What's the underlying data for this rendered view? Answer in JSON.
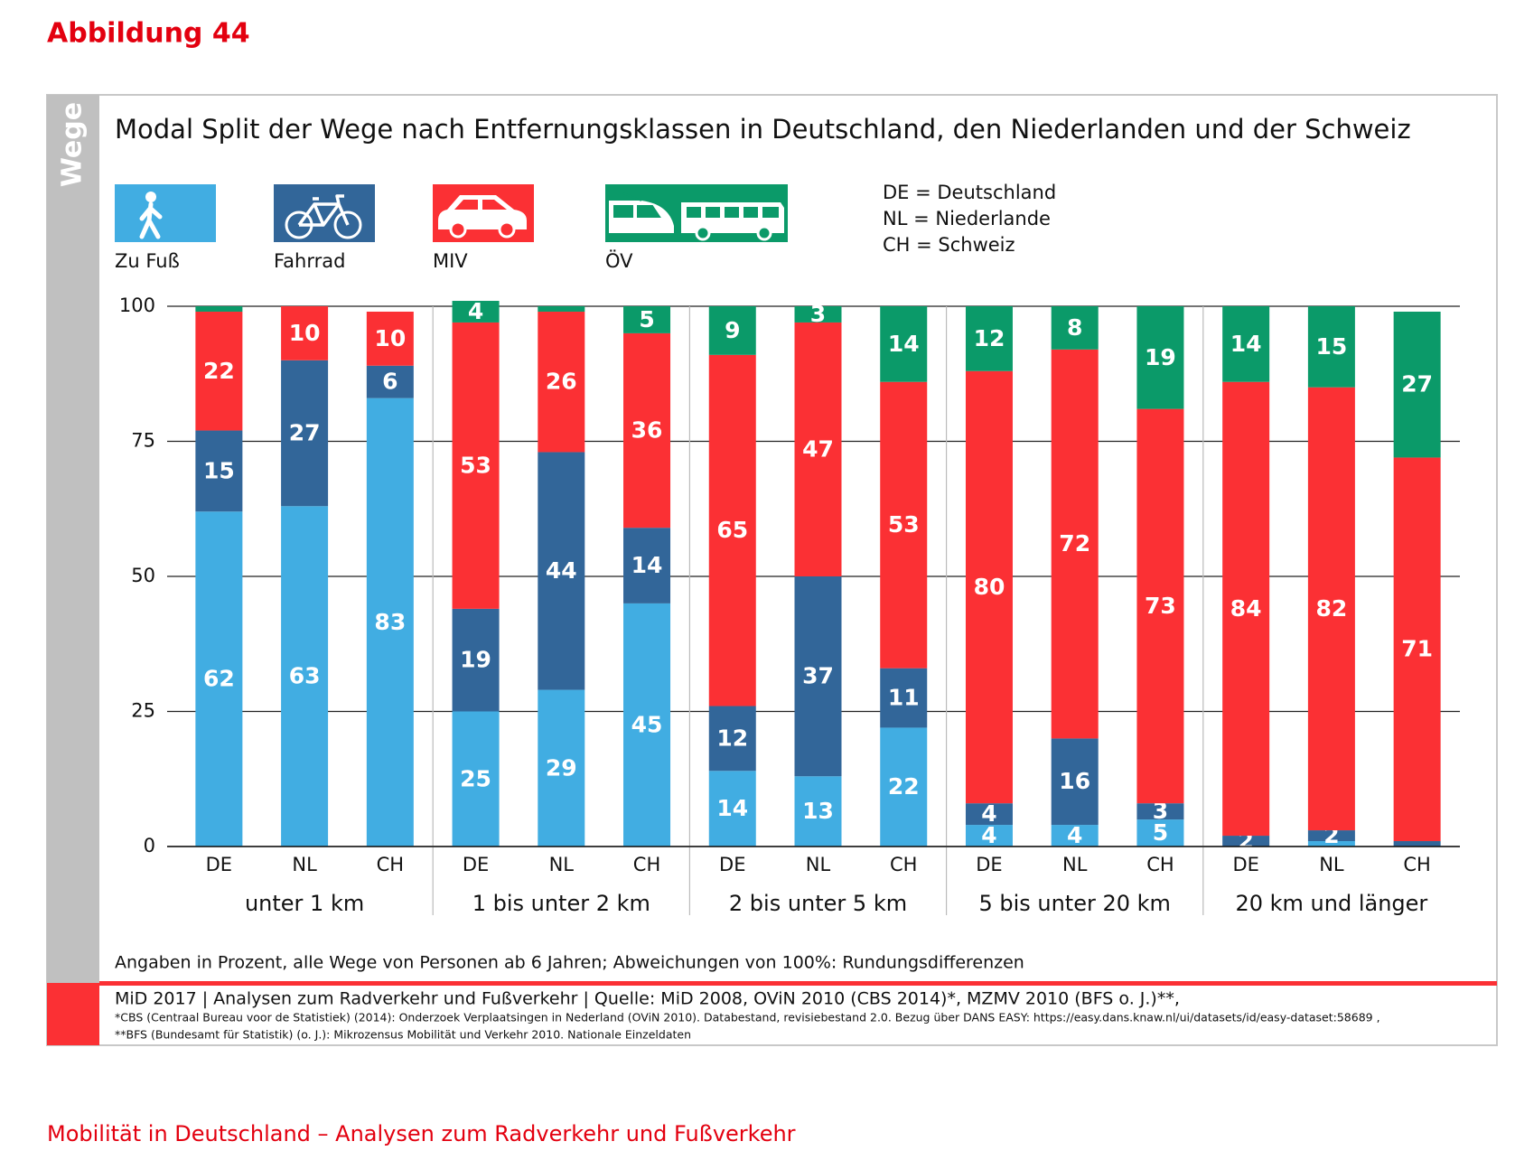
{
  "page": {
    "figure": "Abbildung 44",
    "footer": "Mobilität in Deutschland – Analysen zum Radverkehr und Fußverkehr"
  },
  "chart_data": {
    "type": "stacked_bar",
    "side_label": "Wege",
    "title": "Modal Split der Wege nach Entfernungsklassen in Deutschland, den Niederlanden und der Schweiz",
    "abbreviations": [
      "DE = Deutschland",
      "NL = Niederlande",
      "CH = Schweiz"
    ],
    "categories": [
      "DE",
      "NL",
      "CH",
      "DE",
      "NL",
      "CH",
      "DE",
      "NL",
      "CH",
      "DE",
      "NL",
      "CH",
      "DE",
      "NL",
      "CH"
    ],
    "groups": [
      "unter 1 km",
      "1 bis unter 2 km",
      "2 bis unter 5 km",
      "5 bis unter 20 km",
      "20 km und länger"
    ],
    "series": [
      {
        "name": "Zu Fuß",
        "color": "#41ade2",
        "values": [
          62,
          63,
          83,
          25,
          29,
          45,
          14,
          13,
          22,
          4,
          4,
          5,
          0,
          1,
          0
        ]
      },
      {
        "name": "Fahrrad",
        "color": "#326699",
        "values": [
          15,
          27,
          6,
          19,
          44,
          14,
          12,
          37,
          11,
          4,
          16,
          3,
          2,
          2,
          1
        ]
      },
      {
        "name": "MIV",
        "color": "#fb3034",
        "values": [
          22,
          10,
          10,
          53,
          26,
          36,
          65,
          47,
          53,
          80,
          72,
          73,
          84,
          82,
          71
        ]
      },
      {
        "name": "ÖV",
        "color": "#0b9a69",
        "values": [
          1,
          0,
          0,
          4,
          1,
          5,
          9,
          3,
          14,
          12,
          8,
          19,
          14,
          15,
          27
        ]
      }
    ],
    "ylim": [
      0,
      100
    ],
    "yticks": [
      0,
      25,
      50,
      75,
      100
    ],
    "grid": true,
    "note": "Angaben in Prozent, alle Wege von Personen ab 6 Jahren; Abweichungen von 100%: Rundungsdifferenzen",
    "source": [
      "MiD 2017 | Analysen zum Radverkehr und Fußverkehr | Quelle: MiD 2008, OViN 2010 (CBS 2014)*, MZMV 2010 (BFS o. J.)**,",
      "*CBS (Centraal Bureau voor de Statistiek) (2014): Onderzoek Verplaatsingen in Nederland (OViN 2010). Databestand, revisiebestand 2.0. Bezug über DANS EASY: https://easy.dans.knaw.nl/ui/datasets/id/easy-dataset:58689 ,",
      "**BFS (Bundesamt für Statistik) (o. J.): Mikrozensus Mobilität und Verkehr 2010. Nationale Einzeldaten"
    ]
  }
}
